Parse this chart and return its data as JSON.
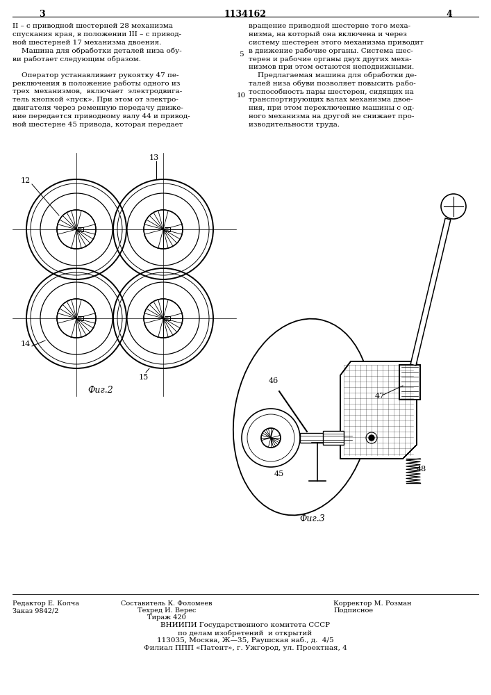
{
  "page_number_left": "3",
  "page_number_center": "1134162",
  "page_number_right": "4",
  "left_column_text": [
    "II – с приводной шестерней 28 механизма",
    "спускания края, в положении III – с привод-",
    "ной шестерней 17 механизма двоения.",
    "    Машина для обработки деталей низа обу-",
    "ви работает следующим образом.",
    "",
    "    Оператор устанавливает рукоятку 47 пе-",
    "реключения в положение работы одного из",
    "трех  механизмов,  включает  электродвига-",
    "тель кнопкой «пуск». При этом от электро-",
    "двигателя через ременную передачу движе-",
    "ние передается приводному валу 44 и привод-",
    "ной шестерне 45 привода, которая передает"
  ],
  "right_column_text": [
    "вращение приводной шестерне того меха-",
    "низма, на который она включена и через",
    "систему шестерен этого механизма приводит",
    "в движение рабочие органы. Система шес-",
    "терен и рабочие органы двух других меха-",
    "низмов при этом остаются неподвижными.",
    "    Предлагаемая машина для обработки де-",
    "талей низа обуви позволяет повысить рабо-",
    "тоспособность пары шестерен, сидящих на",
    "транспортирующих валах механизма двое-",
    "ния, при этом переключение машины с од-",
    "ного механизма на другой не снижает про-",
    "изводительности труда."
  ],
  "fig2_label": "Фиг.2",
  "fig3_label": "Фиг.3",
  "bg_color": "#ffffff",
  "text_color": "#000000",
  "line_color": "#000000"
}
